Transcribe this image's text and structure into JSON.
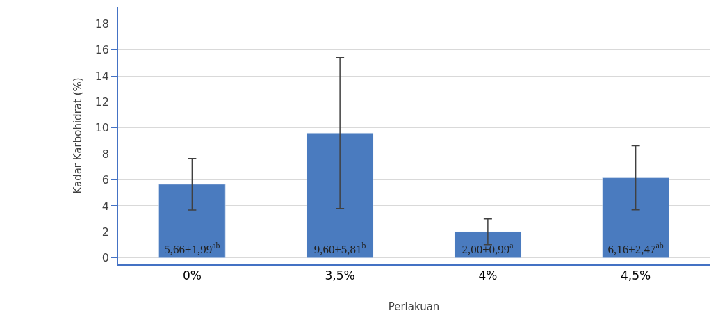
{
  "chart_data": {
    "type": "bar",
    "xlabel": "Perlakuan",
    "ylabel": "Kadar Karbohidrat (%)",
    "categories": [
      "0%",
      "3,5%",
      "4%",
      "4,5%"
    ],
    "values": [
      5.66,
      9.6,
      2.0,
      6.16
    ],
    "errors": [
      1.99,
      5.81,
      0.99,
      2.47
    ],
    "value_labels": [
      "5,66±1,99$^{ab}$",
      "9,60±5,81$^{b}$",
      "2,00±0,99$^{a}$",
      "6,16±2,47$^{ab}$"
    ],
    "color": "#4a7bbf",
    "ylim": [
      -0.5,
      19.3
    ],
    "yticks": [
      0,
      2,
      4,
      6,
      8,
      10,
      12,
      14,
      16,
      18
    ],
    "grid": "y",
    "legend": false
  }
}
